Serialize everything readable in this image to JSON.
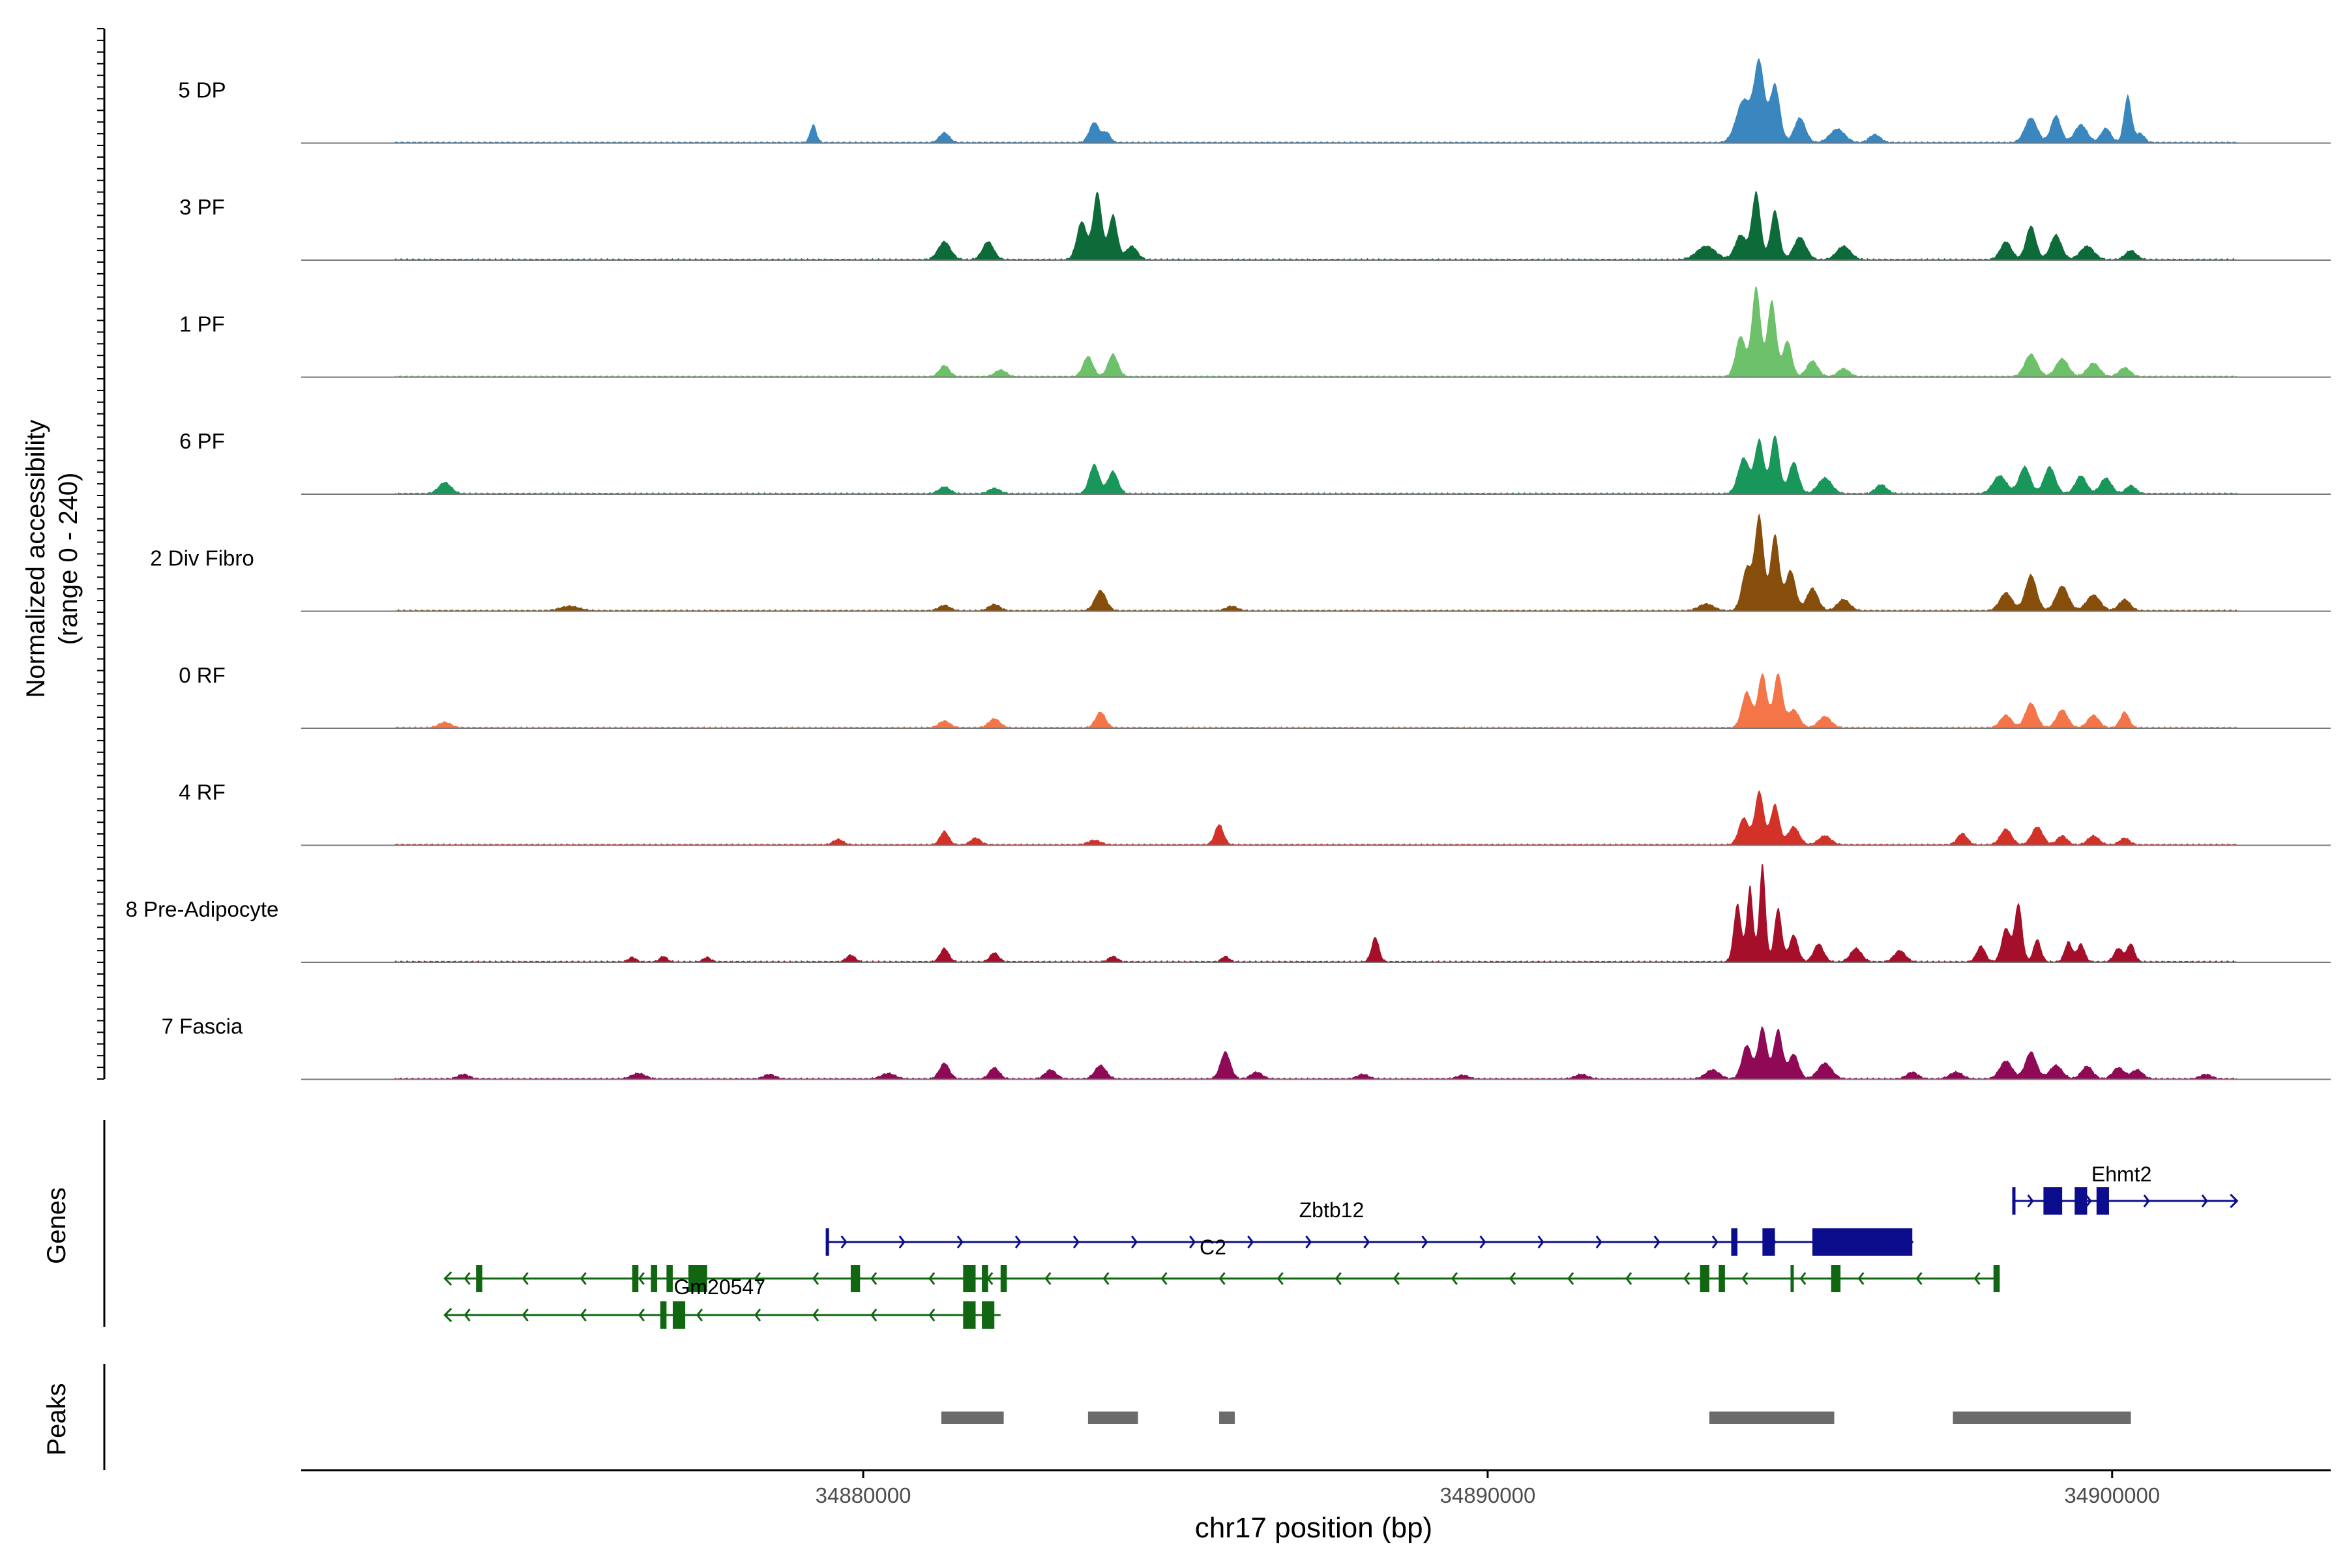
{
  "chart_data": {
    "type": "area",
    "title": "",
    "y_axis_label_line1": "Normalized accessibility",
    "y_axis_label_line2": "(range 0 - 240)",
    "ylim": [
      0,
      240
    ],
    "xlabel": "chr17 position (bp)",
    "xlim": [
      34871000,
      34903500
    ],
    "x_ticks": [
      34880000,
      34890000,
      34900000
    ],
    "x_tick_labels": [
      "34880000",
      "34890000",
      "34900000"
    ],
    "track_range": [
      34872500,
      34902000
    ],
    "tracks": [
      {
        "name": "5 DP",
        "color": "#3a87c0",
        "peaks": [
          [
            34879200,
            40,
            50
          ],
          [
            34881300,
            22,
            80
          ],
          [
            34883700,
            45,
            80
          ],
          [
            34883900,
            22,
            60
          ],
          [
            34894100,
            95,
            120
          ],
          [
            34894350,
            175,
            80
          ],
          [
            34894600,
            130,
            80
          ],
          [
            34895000,
            55,
            90
          ],
          [
            34895600,
            30,
            120
          ],
          [
            34896200,
            18,
            90
          ],
          [
            34898700,
            55,
            100
          ],
          [
            34899100,
            60,
            80
          ],
          [
            34899500,
            40,
            100
          ],
          [
            34899900,
            32,
            80
          ],
          [
            34900250,
            105,
            60
          ],
          [
            34900450,
            20,
            70
          ]
        ]
      },
      {
        "name": "3 PF",
        "color": "#0d6b39",
        "peaks": [
          [
            34881300,
            40,
            100
          ],
          [
            34882000,
            40,
            90
          ],
          [
            34883500,
            85,
            80
          ],
          [
            34883750,
            150,
            70
          ],
          [
            34884000,
            100,
            70
          ],
          [
            34884300,
            30,
            90
          ],
          [
            34893500,
            30,
            150
          ],
          [
            34894050,
            55,
            90
          ],
          [
            34894300,
            150,
            70
          ],
          [
            34894600,
            110,
            70
          ],
          [
            34895000,
            50,
            100
          ],
          [
            34895700,
            30,
            110
          ],
          [
            34898300,
            40,
            90
          ],
          [
            34898700,
            75,
            80
          ],
          [
            34899100,
            55,
            90
          ],
          [
            34899600,
            30,
            110
          ],
          [
            34900300,
            20,
            90
          ]
        ]
      },
      {
        "name": "1 PF",
        "color": "#6cc16a",
        "peaks": [
          [
            34881300,
            25,
            80
          ],
          [
            34882200,
            15,
            90
          ],
          [
            34883600,
            45,
            80
          ],
          [
            34884000,
            50,
            80
          ],
          [
            34894050,
            90,
            80
          ],
          [
            34894300,
            200,
            70
          ],
          [
            34894550,
            170,
            70
          ],
          [
            34894800,
            80,
            70
          ],
          [
            34895200,
            35,
            90
          ],
          [
            34895700,
            18,
            90
          ],
          [
            34898700,
            50,
            100
          ],
          [
            34899200,
            40,
            100
          ],
          [
            34899700,
            30,
            100
          ],
          [
            34900200,
            20,
            90
          ]
        ]
      },
      {
        "name": "6 PF",
        "color": "#19965a",
        "peaks": [
          [
            34873300,
            25,
            100
          ],
          [
            34881300,
            15,
            90
          ],
          [
            34882100,
            12,
            90
          ],
          [
            34883700,
            65,
            80
          ],
          [
            34884000,
            50,
            80
          ],
          [
            34894100,
            80,
            90
          ],
          [
            34894350,
            120,
            70
          ],
          [
            34894600,
            130,
            70
          ],
          [
            34894900,
            70,
            80
          ],
          [
            34895400,
            35,
            110
          ],
          [
            34896300,
            20,
            90
          ],
          [
            34898200,
            40,
            110
          ],
          [
            34898600,
            60,
            90
          ],
          [
            34899000,
            60,
            90
          ],
          [
            34899500,
            40,
            90
          ],
          [
            34899900,
            35,
            90
          ],
          [
            34900300,
            18,
            80
          ]
        ]
      },
      {
        "name": "2 Div Fibro",
        "color": "#864d0b",
        "peaks": [
          [
            34875300,
            10,
            150
          ],
          [
            34881300,
            12,
            90
          ],
          [
            34882100,
            14,
            90
          ],
          [
            34883800,
            45,
            90
          ],
          [
            34885900,
            10,
            90
          ],
          [
            34893500,
            15,
            120
          ],
          [
            34894150,
            95,
            80
          ],
          [
            34894350,
            210,
            70
          ],
          [
            34894600,
            170,
            70
          ],
          [
            34894850,
            90,
            80
          ],
          [
            34895200,
            50,
            90
          ],
          [
            34895700,
            25,
            100
          ],
          [
            34898300,
            40,
            100
          ],
          [
            34898700,
            80,
            90
          ],
          [
            34899200,
            55,
            100
          ],
          [
            34899700,
            35,
            110
          ],
          [
            34900200,
            25,
            90
          ]
        ]
      },
      {
        "name": "0 RF",
        "color": "#f47547",
        "peaks": [
          [
            34873300,
            12,
            100
          ],
          [
            34881300,
            15,
            90
          ],
          [
            34882100,
            20,
            90
          ],
          [
            34883800,
            35,
            80
          ],
          [
            34894150,
            80,
            80
          ],
          [
            34894400,
            120,
            70
          ],
          [
            34894650,
            120,
            70
          ],
          [
            34894900,
            40,
            90
          ],
          [
            34895400,
            25,
            100
          ],
          [
            34898300,
            28,
            90
          ],
          [
            34898700,
            55,
            90
          ],
          [
            34899200,
            40,
            90
          ],
          [
            34899700,
            28,
            90
          ],
          [
            34900200,
            35,
            70
          ]
        ]
      },
      {
        "name": "4 RF",
        "color": "#d33228",
        "peaks": [
          [
            34879600,
            12,
            80
          ],
          [
            34881300,
            30,
            70
          ],
          [
            34881800,
            15,
            80
          ],
          [
            34883700,
            10,
            100
          ],
          [
            34885700,
            45,
            70
          ],
          [
            34894100,
            60,
            80
          ],
          [
            34894350,
            120,
            70
          ],
          [
            34894600,
            90,
            70
          ],
          [
            34894900,
            40,
            90
          ],
          [
            34895400,
            20,
            100
          ],
          [
            34897600,
            25,
            80
          ],
          [
            34898300,
            35,
            90
          ],
          [
            34898800,
            40,
            90
          ],
          [
            34899200,
            20,
            80
          ],
          [
            34899700,
            20,
            90
          ],
          [
            34900200,
            15,
            80
          ]
        ]
      },
      {
        "name": "8 Pre-Adipocyte",
        "color": "#a60f2a",
        "peaks": [
          [
            34876300,
            10,
            60
          ],
          [
            34876800,
            12,
            60
          ],
          [
            34877500,
            10,
            60
          ],
          [
            34879800,
            15,
            70
          ],
          [
            34881300,
            30,
            70
          ],
          [
            34882100,
            20,
            70
          ],
          [
            34884000,
            12,
            70
          ],
          [
            34885800,
            12,
            60
          ],
          [
            34888200,
            55,
            60
          ],
          [
            34894000,
            130,
            60
          ],
          [
            34894200,
            170,
            50
          ],
          [
            34894400,
            220,
            50
          ],
          [
            34894650,
            120,
            60
          ],
          [
            34894900,
            60,
            70
          ],
          [
            34895300,
            40,
            80
          ],
          [
            34895900,
            30,
            90
          ],
          [
            34896600,
            25,
            90
          ],
          [
            34897900,
            35,
            70
          ],
          [
            34898300,
            75,
            70
          ],
          [
            34898500,
            130,
            60
          ],
          [
            34898800,
            50,
            60
          ],
          [
            34899300,
            45,
            60
          ],
          [
            34899500,
            40,
            60
          ],
          [
            34900100,
            30,
            70
          ],
          [
            34900300,
            40,
            60
          ]
        ]
      },
      {
        "name": "7 Fascia",
        "color": "#8f0957",
        "peaks": [
          [
            34873600,
            10,
            90
          ],
          [
            34876400,
            12,
            110
          ],
          [
            34878500,
            10,
            90
          ],
          [
            34880400,
            12,
            110
          ],
          [
            34881300,
            35,
            80
          ],
          [
            34882100,
            25,
            80
          ],
          [
            34883000,
            20,
            90
          ],
          [
            34883800,
            30,
            90
          ],
          [
            34885800,
            60,
            80
          ],
          [
            34886300,
            15,
            90
          ],
          [
            34888000,
            10,
            90
          ],
          [
            34889600,
            8,
            90
          ],
          [
            34891500,
            10,
            100
          ],
          [
            34893600,
            20,
            110
          ],
          [
            34894150,
            75,
            80
          ],
          [
            34894400,
            115,
            70
          ],
          [
            34894650,
            110,
            70
          ],
          [
            34894900,
            55,
            80
          ],
          [
            34895400,
            35,
            110
          ],
          [
            34896800,
            15,
            90
          ],
          [
            34897500,
            15,
            100
          ],
          [
            34898300,
            40,
            100
          ],
          [
            34898700,
            60,
            90
          ],
          [
            34899100,
            30,
            100
          ],
          [
            34899600,
            28,
            90
          ],
          [
            34900100,
            25,
            90
          ],
          [
            34900400,
            20,
            90
          ],
          [
            34901500,
            10,
            90
          ]
        ]
      }
    ],
    "genes_panel_label": "Genes",
    "genes": [
      {
        "name": "Zbtb12",
        "strand": "+",
        "color": "#0b0d8c",
        "row": 0,
        "start": 34879400,
        "end": 34896800,
        "exons": [
          [
            34879400,
            34879420
          ],
          [
            34893900,
            34894000
          ],
          [
            34894400,
            34894600
          ],
          [
            34895200,
            34896800
          ]
        ]
      },
      {
        "name": "Ehmt2",
        "strand": "+",
        "color": "#0b0d8c",
        "row": -1,
        "start": 34898400,
        "end": 34902000,
        "exons": [
          [
            34898400,
            34898430
          ],
          [
            34898900,
            34899200
          ],
          [
            34899400,
            34899600
          ],
          [
            34899750,
            34899950
          ]
        ]
      },
      {
        "name": "C2",
        "strand": "-",
        "color": "#116611",
        "row": 1,
        "start": 34873300,
        "end": 34898200,
        "exons": [
          [
            34873800,
            34873900
          ],
          [
            34876300,
            34876400
          ],
          [
            34876600,
            34876700
          ],
          [
            34876850,
            34876950
          ],
          [
            34877200,
            34877500
          ],
          [
            34879800,
            34879950
          ],
          [
            34881600,
            34881800
          ],
          [
            34881900,
            34882000
          ],
          [
            34882200,
            34882300
          ],
          [
            34893400,
            34893550
          ],
          [
            34893700,
            34893800
          ],
          [
            34894850,
            34894870
          ],
          [
            34895500,
            34895650
          ],
          [
            34898100,
            34898200
          ]
        ]
      },
      {
        "name": "Gm20547",
        "strand": "-",
        "color": "#116611",
        "row": 2,
        "start": 34873300,
        "end": 34882200,
        "exons": [
          [
            34876750,
            34876850
          ],
          [
            34876950,
            34877150
          ],
          [
            34881600,
            34881800
          ],
          [
            34881900,
            34882100
          ]
        ]
      }
    ],
    "peaks_panel_label": "Peaks",
    "peak_color": "#6b6b6b",
    "peak_regions": [
      [
        34881250,
        34882250
      ],
      [
        34883600,
        34884400
      ],
      [
        34885700,
        34885950
      ],
      [
        34893550,
        34895550
      ],
      [
        34897450,
        34900300
      ]
    ]
  }
}
